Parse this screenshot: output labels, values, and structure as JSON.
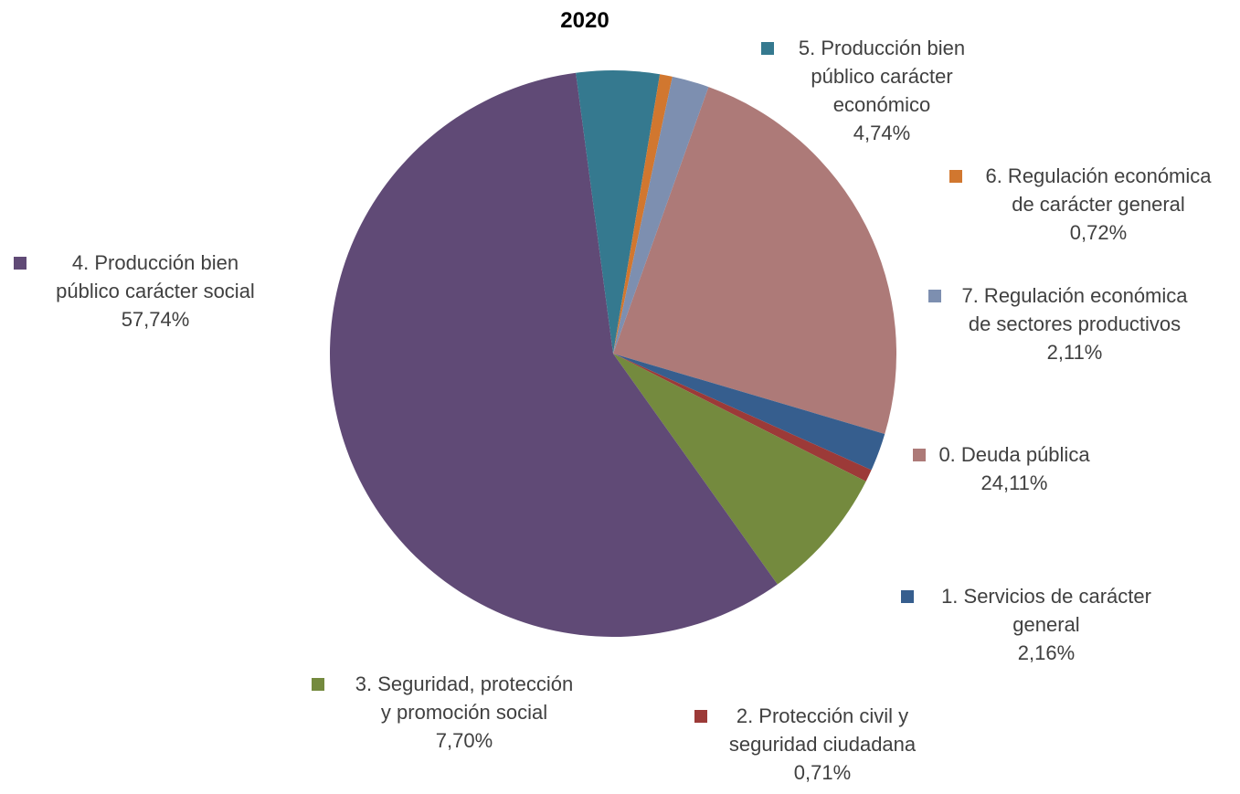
{
  "chart_data": {
    "type": "pie",
    "title": "2020",
    "slices": [
      {
        "lines": [
          "0. Deuda pública"
        ],
        "value": 24.11,
        "value_label": "24,11%",
        "color": "#ad7a78"
      },
      {
        "lines": [
          "1. Servicios de carácter",
          "general"
        ],
        "value": 2.16,
        "value_label": "2,16%",
        "color": "#365e8e"
      },
      {
        "lines": [
          "2. Protección civil y",
          "seguridad ciudadana"
        ],
        "value": 0.71,
        "value_label": "0,71%",
        "color": "#9c3a38"
      },
      {
        "lines": [
          "3. Seguridad, protección",
          "y promoción social"
        ],
        "value": 7.7,
        "value_label": "7,70%",
        "color": "#748a3e"
      },
      {
        "lines": [
          "4. Producción bien",
          "público carácter social"
        ],
        "value": 57.74,
        "value_label": "57,74%",
        "color": "#604a76"
      },
      {
        "lines": [
          "5. Producción bien",
          "público carácter",
          "económico"
        ],
        "value": 4.74,
        "value_label": "4,74%",
        "color": "#35798f"
      },
      {
        "lines": [
          "6. Regulación económica",
          "de carácter general"
        ],
        "value": 0.72,
        "value_label": "0,72%",
        "color": "#d1772f"
      },
      {
        "lines": [
          "7. Regulación económica",
          "de sectores productivos"
        ],
        "value": 2.11,
        "value_label": "2,11%",
        "color": "#7d8fb0"
      }
    ]
  }
}
